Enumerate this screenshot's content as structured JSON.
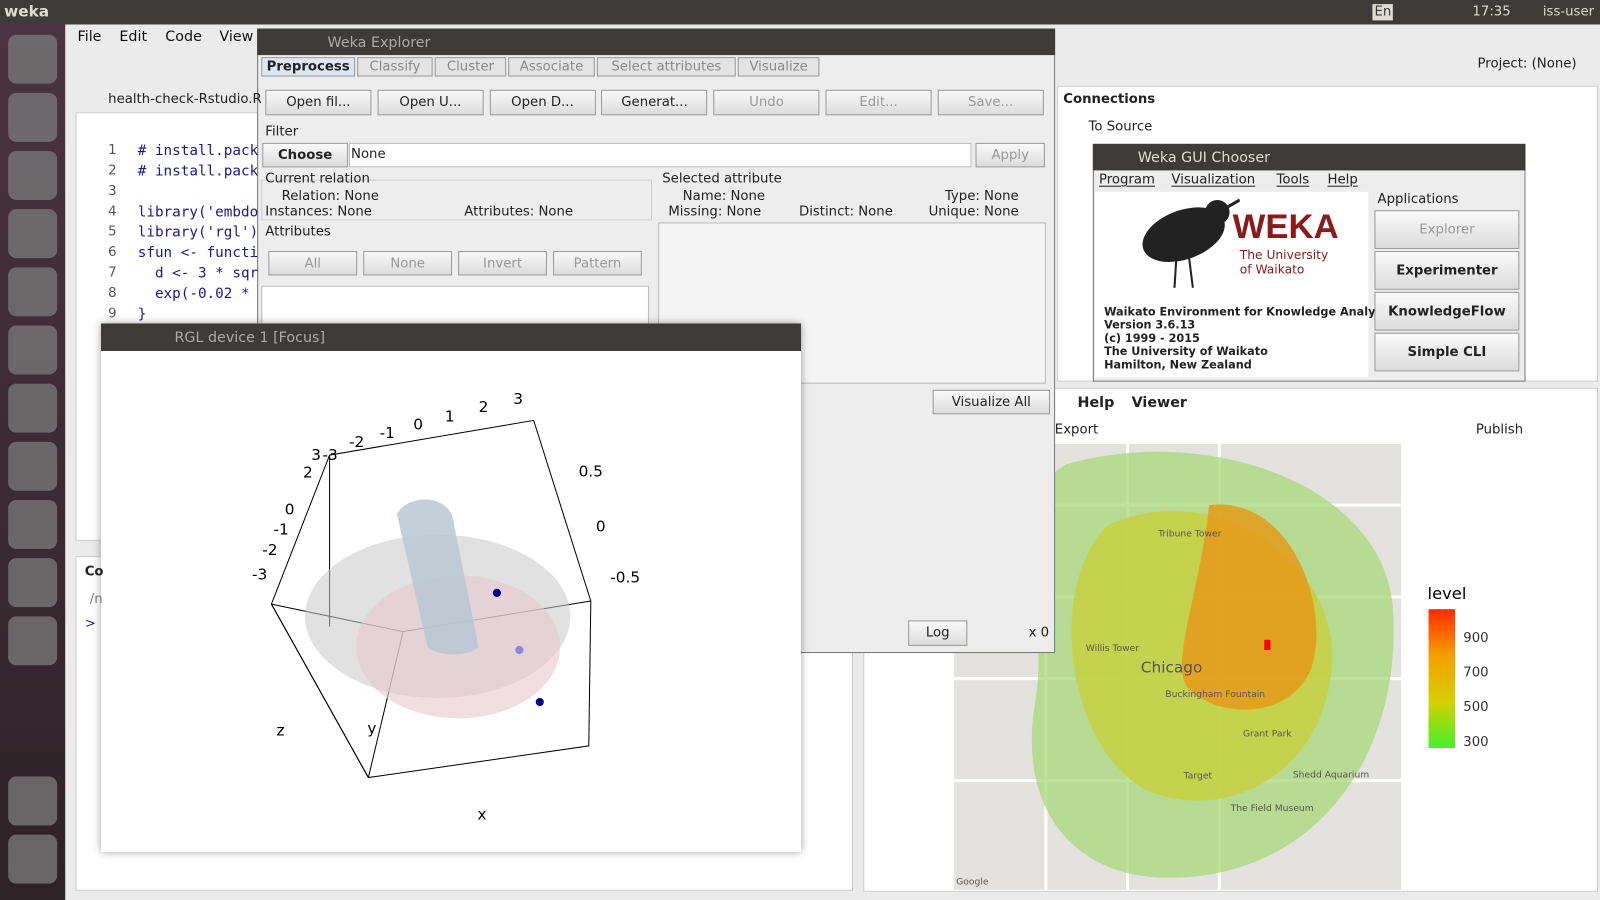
{
  "top_bar": {
    "app": "weka",
    "keyboard": "En",
    "time": "17:35",
    "user": "iss-user"
  },
  "rstudio": {
    "menu": [
      "File",
      "Edit",
      "Code",
      "View"
    ],
    "file_tab": "health-check-Rstudio.R",
    "code_lines": [
      {
        "n": "1",
        "text": "# install.pack"
      },
      {
        "n": "2",
        "text": "# install.pack"
      },
      {
        "n": "3"
      },
      {
        "n": "4",
        "text": "library('embdo"
      },
      {
        "n": "5",
        "text": "library('rgl')"
      },
      {
        "n": "6",
        "text": "sfun <- functi"
      },
      {
        "n": "7",
        "text": "  d <- 3 * sqr"
      },
      {
        "n": "8",
        "text": "  exp(-0.02 * "
      },
      {
        "n": "9",
        "text": "}"
      }
    ],
    "project": "Project: (None)",
    "connections": {
      "title": "Connections",
      "to_source": "To Source"
    },
    "viewer": {
      "tabs": [
        "Help",
        "Viewer"
      ],
      "export": "Export",
      "publish": "Publish"
    },
    "console": {
      "title": "Co",
      "path": "/n",
      "prompt": ">"
    }
  },
  "weka_explorer": {
    "title": "Weka Explorer",
    "tabs": [
      "Preprocess",
      "Classify",
      "Cluster",
      "Associate",
      "Select attributes",
      "Visualize"
    ],
    "buttons": [
      "Open fil...",
      "Open U...",
      "Open D...",
      "Generat...",
      "Undo",
      "Edit...",
      "Save..."
    ],
    "filter": {
      "label": "Filter",
      "choose": "Choose",
      "value": "None",
      "apply": "Apply"
    },
    "current_relation": {
      "title": "Current relation",
      "relation": "Relation: None",
      "instances": "Instances: None",
      "attributes": "Attributes: None"
    },
    "selected_attribute": {
      "title": "Selected attribute",
      "name": "Name: None",
      "type": "Type: None",
      "missing": "Missing: None",
      "distinct": "Distinct: None",
      "unique": "Unique: None"
    },
    "attributes": {
      "title": "Attributes",
      "buttons": [
        "All",
        "None",
        "Invert",
        "Pattern"
      ]
    },
    "visualize_all": "Visualize All",
    "log": "Log",
    "status": "x 0"
  },
  "rgl": {
    "title": "RGL device 1 [Focus]",
    "top_ticks": [
      "-3",
      "-2",
      "-1",
      "0",
      "1",
      "2",
      "3"
    ],
    "left_ticks": [
      "3",
      "2",
      "0",
      "-1",
      "-2",
      "-3"
    ],
    "right_ticks": [
      "0.5",
      "0",
      "-0.5"
    ],
    "axis_labels": [
      "z",
      "y",
      "x"
    ]
  },
  "gui_chooser": {
    "title": "Weka GUI Chooser",
    "menu": [
      "Program",
      "Visualization",
      "Tools",
      "Help"
    ],
    "logo": {
      "name": "WEKA",
      "line1": "The University",
      "line2": "of Waikato"
    },
    "info": [
      "Waikato Environment for Knowledge Analysis",
      "Version 3.6.13",
      "(c) 1999 - 2015",
      "The University of Waikato",
      "Hamilton, New Zealand"
    ],
    "applications": "Applications",
    "buttons": [
      "Explorer",
      "Experimenter",
      "KnowledgeFlow",
      "Simple CLI"
    ]
  },
  "map": {
    "labels": [
      "Chicago",
      "Willis Tower",
      "Grant Park",
      "Buckingham Fountain",
      "The Field Museum",
      "Shedd Aquarium",
      "Tribune Tower",
      "Target",
      "Google"
    ],
    "legend": {
      "title": "level",
      "labels": [
        "900",
        "700",
        "500",
        "300"
      ]
    }
  }
}
